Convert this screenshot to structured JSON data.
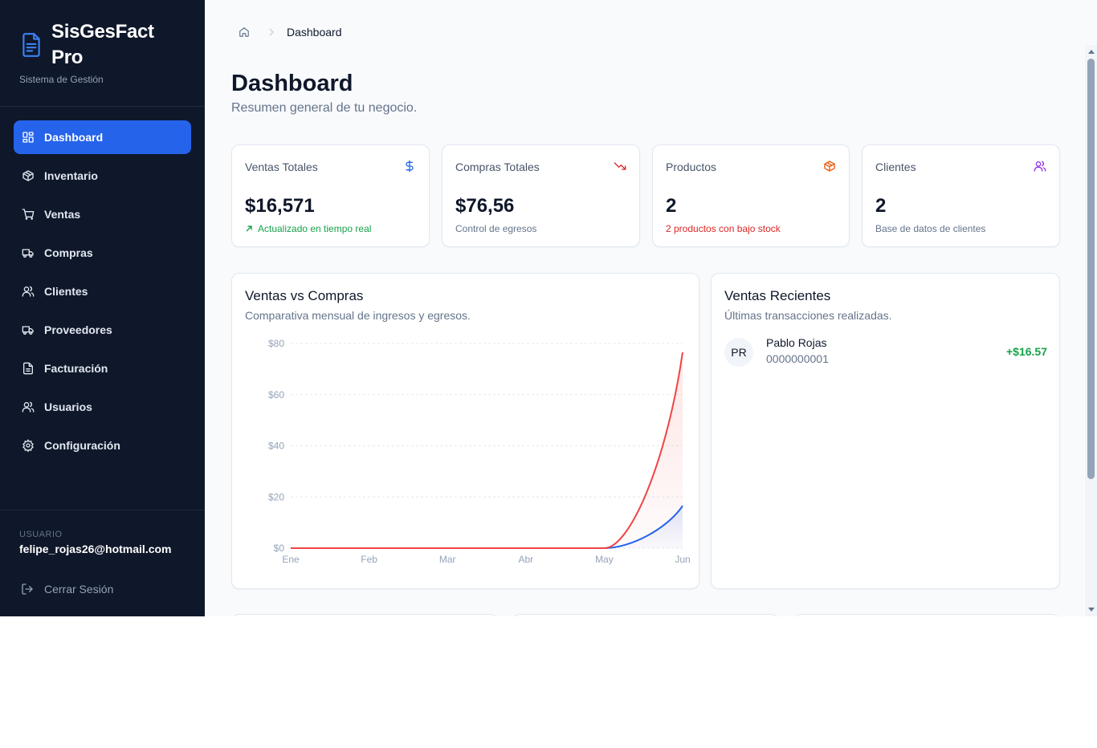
{
  "brand": {
    "title": "SisGesFact Pro",
    "subtitle": "Sistema de Gestión"
  },
  "nav": [
    {
      "label": "Dashboard",
      "icon": "dashboard-icon",
      "active": true
    },
    {
      "label": "Inventario",
      "icon": "package-icon"
    },
    {
      "label": "Ventas",
      "icon": "cart-icon"
    },
    {
      "label": "Compras",
      "icon": "truck-icon"
    },
    {
      "label": "Clientes",
      "icon": "users-icon"
    },
    {
      "label": "Proveedores",
      "icon": "truck-icon"
    },
    {
      "label": "Facturación",
      "icon": "file-icon"
    },
    {
      "label": "Usuarios",
      "icon": "users-icon"
    },
    {
      "label": "Configuración",
      "icon": "gear-icon"
    }
  ],
  "user": {
    "label": "USUARIO",
    "email": "felipe_rojas26@hotmail.com",
    "logout": "Cerrar Sesión"
  },
  "breadcrumb": {
    "current": "Dashboard"
  },
  "page": {
    "title": "Dashboard",
    "subtitle": "Resumen general de tu negocio."
  },
  "stats": [
    {
      "label": "Ventas Totales",
      "value": "$16,571",
      "note": "Actualizado en tiempo real",
      "note_color": "#16a34a",
      "icon": "dollar-icon",
      "icon_color": "#2563eb"
    },
    {
      "label": "Compras Totales",
      "value": "$76,56",
      "note": "Control de egresos",
      "note_color": "#64748b",
      "icon": "trending-down-icon",
      "icon_color": "#dc2626"
    },
    {
      "label": "Productos",
      "value": "2",
      "note": "2 productos con bajo stock",
      "note_color": "#dc2626",
      "icon": "package-icon",
      "icon_color": "#ea580c"
    },
    {
      "label": "Clientes",
      "value": "2",
      "note": "Base de datos de clientes",
      "note_color": "#64748b",
      "icon": "users-icon",
      "icon_color": "#9333ea"
    }
  ],
  "chart_card": {
    "title": "Ventas vs Compras",
    "subtitle": "Comparativa mensual de ingresos y egresos."
  },
  "chart_data": {
    "type": "area",
    "categories": [
      "Ene",
      "Feb",
      "Mar",
      "Abr",
      "May",
      "Jun"
    ],
    "series": [
      {
        "values": [
          0,
          0,
          0,
          0,
          0,
          76.56
        ],
        "color": "#ef4444"
      },
      {
        "values": [
          0,
          0,
          0,
          0,
          0,
          16.57
        ],
        "color": "#2563eb"
      }
    ],
    "ylim": [
      0,
      80
    ],
    "yticks": [
      0,
      20,
      40,
      60,
      80
    ],
    "ytick_labels": [
      "$0",
      "$20",
      "$40",
      "$60",
      "$80"
    ],
    "grid": true
  },
  "recent": {
    "title": "Ventas Recientes",
    "subtitle": "Últimas transacciones realizadas.",
    "items": [
      {
        "initials": "PR",
        "name": "Pablo Rojas",
        "id": "0000000001",
        "amount": "+$16.57"
      }
    ]
  }
}
